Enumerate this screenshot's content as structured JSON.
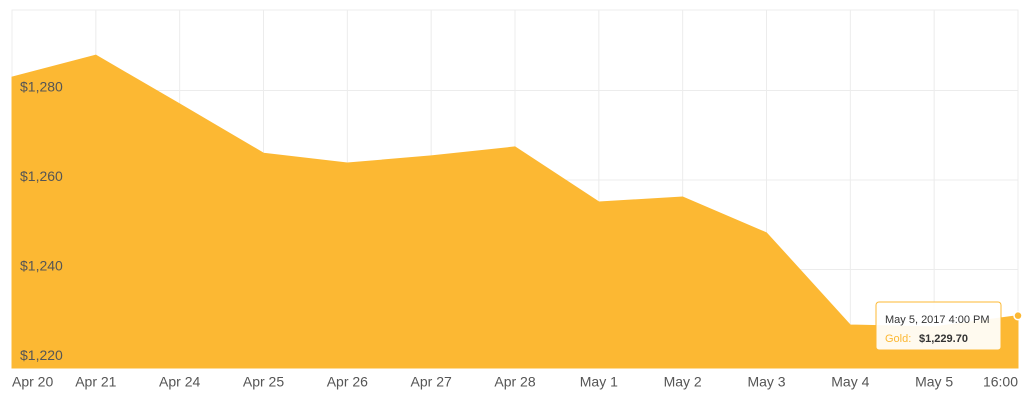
{
  "chart_data": {
    "type": "area",
    "categories": [
      "Apr 20",
      "Apr 21",
      "Apr 24",
      "Apr 25",
      "Apr 26",
      "Apr 27",
      "Apr 28",
      "May 1",
      "May 2",
      "May 3",
      "May 4",
      "May 5",
      "16:00"
    ],
    "series": [
      {
        "color": "#fcb833",
        "values": [
          1283.0,
          1287.9,
          1277.0,
          1266.0,
          1263.8,
          1265.4,
          1267.4,
          1255.1,
          1256.2,
          1248.2,
          1227.6,
          1227.2,
          1229.7
        ]
      }
    ],
    "ylim": [
      1218,
      1298
    ],
    "yticks": [
      {
        "value": 1220,
        "label": "$1,220"
      },
      {
        "value": 1240,
        "label": "$1,240"
      },
      {
        "value": 1260,
        "label": "$1,260"
      },
      {
        "value": 1280,
        "label": "$1,280"
      }
    ],
    "grid": true,
    "tooltip": {
      "title": "May 5, 2017 4:00 PM",
      "series_label": "Gold:",
      "value_label": "$1,229.70"
    }
  }
}
